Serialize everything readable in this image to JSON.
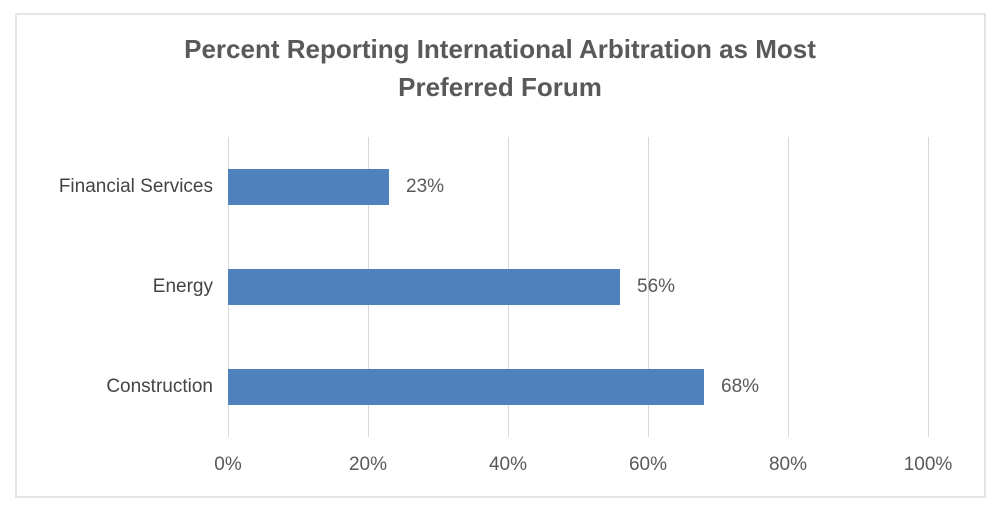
{
  "colors": {
    "bar_fill": "#4f81bd",
    "gridline": "#d9d9d9",
    "frame_border": "#e4e4e4",
    "title_text": "#595959",
    "axis_text": "#595959",
    "category_text": "#444444"
  },
  "chart_data": {
    "type": "bar",
    "orientation": "horizontal",
    "title": "Percent Reporting International Arbitration as Most Preferred Forum",
    "title_lines": [
      "Percent Reporting International Arbitration as Most",
      "Preferred Forum"
    ],
    "categories": [
      "Financial Services",
      "Energy",
      "Construction"
    ],
    "values": [
      23,
      56,
      68
    ],
    "value_labels": [
      "23%",
      "56%",
      "68%"
    ],
    "xlim": [
      0,
      100
    ],
    "x_ticks": [
      {
        "value": 0,
        "label": "0%"
      },
      {
        "value": 20,
        "label": "20%"
      },
      {
        "value": 40,
        "label": "40%"
      },
      {
        "value": 60,
        "label": "60%"
      },
      {
        "value": 80,
        "label": "80%"
      },
      {
        "value": 100,
        "label": "100%"
      }
    ],
    "xlabel": "",
    "ylabel": "",
    "grid": "vertical-only",
    "legend": "none",
    "data_labels": "outside-end"
  }
}
